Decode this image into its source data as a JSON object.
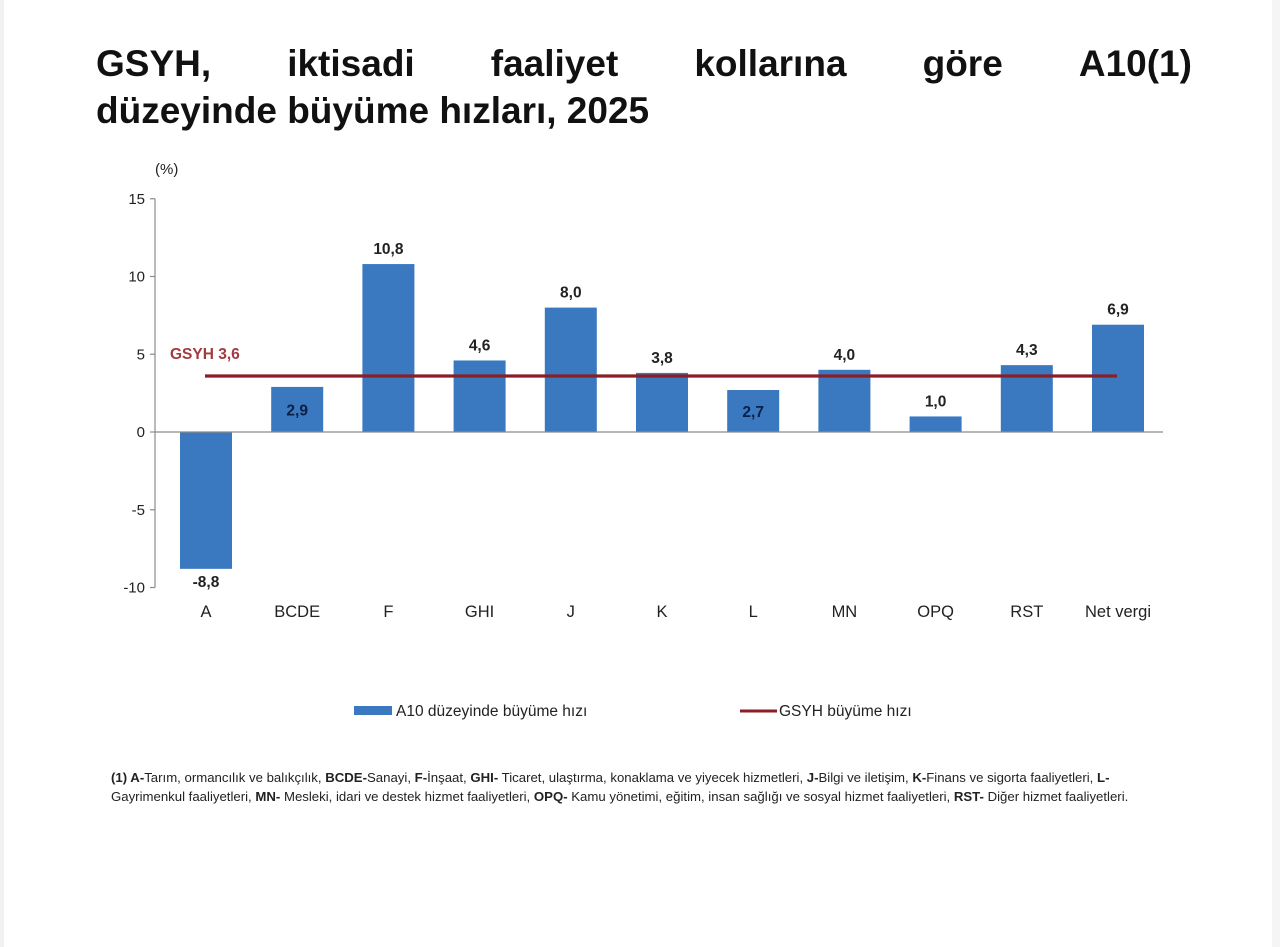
{
  "title": {
    "line1_words": [
      "GSYH,",
      "iktisadi",
      "faaliyet",
      "kollarına",
      "göre",
      "A10(1)"
    ],
    "line2": "düzeyinde büyüme hızları, 2025"
  },
  "chart_data": {
    "type": "bar",
    "title": "GSYH, iktisadi faaliyet kollarına göre A10(1) düzeyinde büyüme hızları, 2025",
    "ylabel": "(%)",
    "xlabel": "",
    "ylim": [
      -10,
      15
    ],
    "yticks": [
      "15",
      "10",
      "5",
      "0",
      "-5",
      "-10"
    ],
    "ytick_values": [
      15,
      10,
      5,
      0,
      -5,
      -10
    ],
    "grid": false,
    "legend_position": "bottom",
    "categories": [
      "A",
      "BCDE",
      "F",
      "GHI",
      "J",
      "K",
      "L",
      "MN",
      "OPQ",
      "RST",
      "Net vergi"
    ],
    "series": [
      {
        "name": "A10 düzeyinde büyüme hızı",
        "type": "bar",
        "color": "#3a78c0",
        "values": [
          -8.8,
          2.9,
          10.8,
          4.6,
          8.0,
          3.8,
          2.7,
          4.0,
          1.0,
          4.3,
          6.9
        ],
        "labels": [
          "-8,8",
          "2,9",
          "10,8",
          "4,6",
          "8,0",
          "3,8",
          "2,7",
          "4,0",
          "1,0",
          "4,3",
          "6,9"
        ]
      },
      {
        "name": "GSYH büyüme hızı",
        "type": "line",
        "color": "#8b1e24",
        "value": 3.6,
        "annotation": "GSYH 3,6"
      }
    ]
  },
  "legend": {
    "bar_label": "A10 düzeyinde büyüme hızı",
    "line_label": "GSYH büyüme hızı"
  },
  "footnote": {
    "segments": [
      {
        "b": "(1) A-",
        "t": "Tarım, ormancılık ve balıkçılık, "
      },
      {
        "b": "BCDE-",
        "t": "Sanayi, "
      },
      {
        "b": "F-",
        "t": "İnşaat, "
      },
      {
        "b": "GHI-",
        "t": " Ticaret, ulaştırma, konaklama ve yiyecek hizmetleri, "
      },
      {
        "b": "J-",
        "t": "Bilgi ve iletişim, "
      },
      {
        "b": "K-",
        "t": "Finans ve sigorta faaliyetleri, "
      },
      {
        "b": "L-",
        "t": "Gayrimenkul faaliyetleri, "
      },
      {
        "b": "MN-",
        "t": " Mesleki, idari ve destek hizmet faaliyetleri, "
      },
      {
        "b": "OPQ-",
        "t": " Kamu yönetimi, eğitim, insan sağlığı ve sosyal hizmet faaliyetleri, "
      },
      {
        "b": "RST-",
        "t": " Diğer hizmet faaliyetleri."
      }
    ]
  }
}
